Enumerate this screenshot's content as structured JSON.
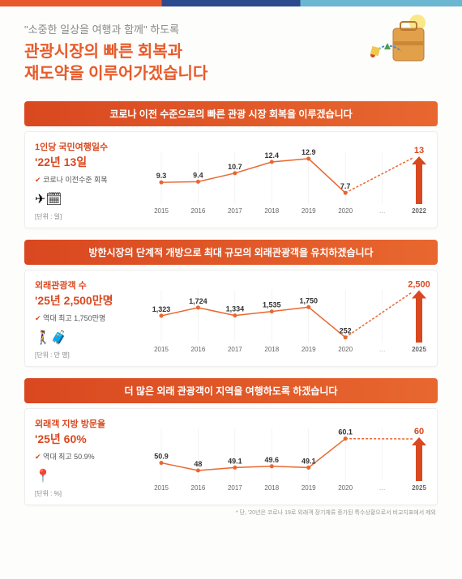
{
  "header": {
    "quote": "\"소중한 일상을 여행과 함께\" 하도록",
    "title1": "관광시장의 빠른 회복과",
    "title2": "재도약을 이루어가겠습니다"
  },
  "sections": [
    {
      "banner": "코로나 이전 수준으로의 빠른 관광 시장 회복을 이루겠습니다",
      "stat_label": "1인당 국민여행일수",
      "stat_main": "'22년 13일",
      "check": "코로나 이전수준 회복",
      "icon": "✈🗓",
      "unit": "[단위 : 일]",
      "chart": {
        "x_labels": [
          "2015",
          "2016",
          "2017",
          "2018",
          "2019",
          "2020",
          "",
          "2022"
        ],
        "values": [
          9.3,
          9.4,
          10.7,
          12.4,
          12.9,
          7.7,
          null,
          13
        ],
        "ylim": [
          6,
          14
        ],
        "target_idx": 7,
        "target_value": 13,
        "target_color": "#d94820",
        "line_color": "#e8672f",
        "point_color": "#e8672f",
        "grid_color": "#e8e8e8",
        "bg_color": "#ffffff",
        "label_fontsize": 9,
        "axis_fontsize": 8
      }
    },
    {
      "banner": "방한시장의 단계적 개방으로 최대 규모의 외래관광객을 유치하겠습니다",
      "stat_label": "외래관광객 수",
      "stat_main": "'25년 2,500만명",
      "check": "역대 최고 1,750만명",
      "icon": "🚶‍♀️🧳",
      "unit": "[단위 : 만 명]",
      "chart": {
        "x_labels": [
          "2015",
          "2016",
          "2017",
          "2018",
          "2019",
          "2020",
          "",
          "2025"
        ],
        "values": [
          1323,
          1724,
          1334,
          1535,
          1750,
          252,
          null,
          2500
        ],
        "ylim": [
          0,
          2600
        ],
        "target_idx": 7,
        "target_value": 2500,
        "target_color": "#d94820",
        "line_color": "#e8672f",
        "point_color": "#e8672f",
        "grid_color": "#e8e8e8",
        "bg_color": "#ffffff",
        "label_fontsize": 9,
        "axis_fontsize": 8
      }
    },
    {
      "banner": "더 많은 외래 관광객이 지역을 여행하도록 하겠습니다",
      "stat_label": "외래객 지방 방문율",
      "stat_main": "'25년 60%",
      "check": "역대 최고 50.9%",
      "icon": "📍",
      "unit": "[단위 : %]",
      "chart": {
        "x_labels": [
          "2015",
          "2016",
          "2017",
          "2018",
          "2019",
          "2020",
          "",
          "2025"
        ],
        "values": [
          50.9,
          48,
          49.1,
          49.6,
          49.1,
          60.1,
          null,
          60
        ],
        "ylim": [
          44,
          64
        ],
        "target_idx": 7,
        "target_value": 60,
        "target_color": "#d94820",
        "line_color": "#e8672f",
        "point_color": "#e8672f",
        "grid_color": "#e8e8e8",
        "bg_color": "#ffffff",
        "label_fontsize": 9,
        "axis_fontsize": 8
      },
      "footnote": "* 단, '20년은 코로나 19로 외래객 장기체류 증가된 특수상황으로서 비교지표에서 제외"
    }
  ]
}
